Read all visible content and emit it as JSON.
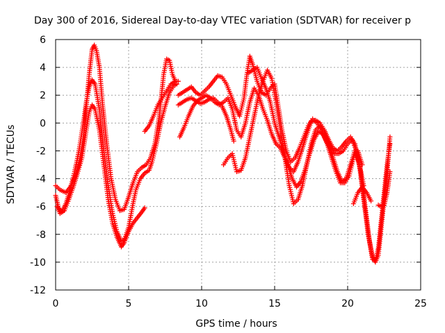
{
  "chart_data": {
    "type": "scatter",
    "title": "Day 300 of 2016, Sidereal Day-to-day VTEC variation (SDTVAR) for receiver p",
    "xlabel": "GPS time / hours",
    "ylabel": "SDTVAR / TECUs",
    "xlim": [
      0,
      25
    ],
    "ylim": [
      -12,
      6
    ],
    "x_ticks": [
      0,
      5,
      10,
      15,
      20,
      25
    ],
    "y_ticks": [
      -12,
      -10,
      -8,
      -6,
      -4,
      -2,
      0,
      2,
      4,
      6
    ],
    "grid": true,
    "marker": "+",
    "marker_color": "#ff0000",
    "series": [
      {
        "points": [
          [
            0.0,
            -4.5
          ],
          [
            0.3,
            -4.8
          ],
          [
            0.7,
            -5.0
          ],
          [
            1.0,
            -4.6
          ],
          [
            1.3,
            -3.9
          ],
          [
            1.6,
            -3.0
          ],
          [
            1.9,
            -1.0
          ],
          [
            2.1,
            1.2
          ],
          [
            2.3,
            3.5
          ],
          [
            2.5,
            5.3
          ],
          [
            2.65,
            5.6
          ],
          [
            2.8,
            5.2
          ],
          [
            3.0,
            4.0
          ],
          [
            3.2,
            1.5
          ],
          [
            3.5,
            -1.5
          ],
          [
            3.8,
            -4.0
          ],
          [
            4.1,
            -5.5
          ],
          [
            4.4,
            -6.3
          ],
          [
            4.7,
            -6.2
          ],
          [
            5.0,
            -5.3
          ],
          [
            5.3,
            -4.3
          ],
          [
            5.6,
            -3.5
          ],
          [
            5.9,
            -3.2
          ],
          [
            6.2,
            -3.0
          ],
          [
            6.5,
            -2.5
          ],
          [
            6.8,
            -1.5
          ],
          [
            7.1,
            0.5
          ],
          [
            7.4,
            3.5
          ],
          [
            7.6,
            4.6
          ],
          [
            7.8,
            4.5
          ],
          [
            8.0,
            3.5
          ],
          [
            8.2,
            3.0
          ],
          [
            8.4,
            3.0
          ]
        ]
      },
      {
        "points": [
          [
            0.0,
            -5.2
          ],
          [
            0.2,
            -6.1
          ],
          [
            0.4,
            -6.4
          ],
          [
            0.7,
            -5.8
          ],
          [
            1.0,
            -4.8
          ],
          [
            1.3,
            -3.5
          ],
          [
            1.6,
            -2.0
          ],
          [
            1.9,
            0.0
          ],
          [
            2.1,
            1.5
          ],
          [
            2.3,
            2.6
          ],
          [
            2.5,
            3.1
          ],
          [
            2.7,
            2.8
          ],
          [
            3.0,
            1.0
          ],
          [
            3.3,
            -2.0
          ],
          [
            3.6,
            -4.5
          ],
          [
            3.9,
            -6.5
          ],
          [
            4.2,
            -7.8
          ],
          [
            4.5,
            -8.5
          ],
          [
            4.7,
            -8.4
          ],
          [
            5.0,
            -7.5
          ],
          [
            5.3,
            -5.8
          ],
          [
            5.5,
            -4.8
          ],
          [
            5.8,
            -4.0
          ],
          [
            6.1,
            -3.6
          ],
          [
            6.4,
            -3.4
          ],
          [
            6.6,
            -2.8
          ],
          [
            6.9,
            -1.5
          ],
          [
            7.2,
            0.0
          ],
          [
            7.5,
            1.2
          ],
          [
            7.8,
            2.2
          ],
          [
            8.1,
            2.7
          ],
          [
            8.3,
            2.8
          ]
        ]
      },
      {
        "points": [
          [
            0.1,
            -6.0
          ],
          [
            0.3,
            -6.5
          ],
          [
            0.6,
            -6.3
          ],
          [
            0.9,
            -5.5
          ],
          [
            1.2,
            -4.6
          ],
          [
            1.5,
            -3.6
          ],
          [
            1.8,
            -2.5
          ],
          [
            2.1,
            -0.5
          ],
          [
            2.3,
            0.8
          ],
          [
            2.5,
            1.3
          ],
          [
            2.7,
            1.0
          ],
          [
            3.0,
            -0.5
          ],
          [
            3.3,
            -3.0
          ],
          [
            3.6,
            -5.5
          ],
          [
            3.9,
            -7.2
          ],
          [
            4.2,
            -8.2
          ],
          [
            4.5,
            -8.9
          ],
          [
            4.7,
            -8.6
          ],
          [
            5.0,
            -7.8
          ],
          [
            5.3,
            -7.2
          ],
          [
            5.6,
            -6.8
          ],
          [
            5.9,
            -6.4
          ],
          [
            6.1,
            -6.1
          ]
        ]
      },
      {
        "points": [
          [
            6.1,
            -0.6
          ],
          [
            6.4,
            -0.2
          ],
          [
            6.7,
            0.5
          ],
          [
            7.0,
            1.3
          ],
          [
            7.3,
            1.8
          ],
          [
            7.6,
            2.3
          ],
          [
            7.9,
            2.8
          ],
          [
            8.2,
            3.0
          ]
        ]
      },
      {
        "points": [
          [
            8.5,
            -1.0
          ],
          [
            8.8,
            -0.3
          ],
          [
            9.1,
            0.5
          ],
          [
            9.4,
            1.2
          ],
          [
            9.7,
            1.6
          ],
          [
            10.0,
            1.8
          ],
          [
            10.3,
            2.0
          ],
          [
            10.6,
            1.8
          ],
          [
            10.9,
            1.5
          ],
          [
            11.2,
            1.3
          ],
          [
            11.5,
            1.5
          ],
          [
            11.8,
            1.8
          ],
          [
            12.1,
            1.0
          ],
          [
            12.4,
            -0.5
          ],
          [
            12.7,
            -1.0
          ],
          [
            13.0,
            0.0
          ],
          [
            13.3,
            1.5
          ],
          [
            13.6,
            2.5
          ],
          [
            13.9,
            2.0
          ],
          [
            14.2,
            1.0
          ],
          [
            14.5,
            0.2
          ],
          [
            14.8,
            -0.8
          ],
          [
            15.1,
            -1.5
          ],
          [
            15.4,
            -1.8
          ],
          [
            15.7,
            -2.5
          ],
          [
            16.0,
            -3.2
          ],
          [
            16.3,
            -3.5
          ],
          [
            16.6,
            -2.8
          ],
          [
            16.9,
            -1.8
          ],
          [
            17.2,
            -0.8
          ],
          [
            17.5,
            0.1
          ],
          [
            17.8,
            0.2
          ],
          [
            18.1,
            0.0
          ],
          [
            18.4,
            -0.5
          ],
          [
            18.7,
            -1.2
          ],
          [
            19.0,
            -1.8
          ],
          [
            19.3,
            -2.0
          ],
          [
            19.6,
            -1.7
          ],
          [
            19.9,
            -1.3
          ],
          [
            20.2,
            -1.0
          ],
          [
            20.5,
            -1.5
          ],
          [
            20.8,
            -3.0
          ],
          [
            21.1,
            -5.5
          ],
          [
            21.4,
            -8.0
          ],
          [
            21.7,
            -9.6
          ],
          [
            21.9,
            -10.0
          ],
          [
            22.1,
            -9.5
          ],
          [
            22.3,
            -7.5
          ],
          [
            22.5,
            -5.5
          ],
          [
            22.7,
            -3.5
          ],
          [
            22.9,
            -1.0
          ]
        ]
      },
      {
        "points": [
          [
            8.4,
            2.0
          ],
          [
            8.7,
            2.2
          ],
          [
            9.0,
            2.4
          ],
          [
            9.3,
            2.6
          ],
          [
            9.6,
            2.2
          ],
          [
            9.9,
            2.0
          ],
          [
            10.2,
            2.3
          ],
          [
            10.5,
            2.6
          ],
          [
            10.8,
            3.0
          ],
          [
            11.1,
            3.4
          ],
          [
            11.4,
            3.3
          ],
          [
            11.7,
            2.8
          ],
          [
            12.0,
            2.0
          ],
          [
            12.3,
            1.2
          ],
          [
            12.6,
            0.5
          ],
          [
            12.9,
            1.8
          ],
          [
            13.1,
            3.5
          ],
          [
            13.3,
            4.8
          ],
          [
            13.5,
            4.2
          ],
          [
            13.8,
            3.0
          ],
          [
            14.1,
            2.2
          ],
          [
            14.4,
            2.0
          ],
          [
            14.7,
            2.5
          ],
          [
            15.0,
            2.8
          ],
          [
            15.2,
            1.5
          ],
          [
            15.5,
            -0.5
          ],
          [
            15.8,
            -2.0
          ],
          [
            16.1,
            -2.8
          ],
          [
            16.4,
            -2.5
          ],
          [
            16.7,
            -1.8
          ],
          [
            17.0,
            -1.0
          ],
          [
            17.3,
            -0.2
          ],
          [
            17.6,
            0.3
          ],
          [
            17.9,
            0.0
          ],
          [
            18.2,
            -0.5
          ],
          [
            18.5,
            -1.2
          ],
          [
            18.8,
            -1.8
          ],
          [
            19.1,
            -2.2
          ],
          [
            19.4,
            -2.2
          ],
          [
            19.7,
            -2.0
          ],
          [
            20.0,
            -1.5
          ],
          [
            20.3,
            -1.2
          ],
          [
            20.6,
            -2.0
          ],
          [
            20.9,
            -3.5
          ],
          [
            21.2,
            -6.0
          ],
          [
            21.5,
            -8.5
          ],
          [
            21.7,
            -9.8
          ],
          [
            21.9,
            -9.9
          ],
          [
            22.1,
            -9.0
          ],
          [
            22.3,
            -7.0
          ],
          [
            22.5,
            -5.0
          ],
          [
            22.7,
            -3.0
          ],
          [
            22.9,
            -1.5
          ]
        ]
      },
      {
        "points": [
          [
            8.4,
            1.3
          ],
          [
            8.7,
            1.5
          ],
          [
            9.0,
            1.7
          ],
          [
            9.3,
            1.8
          ],
          [
            9.6,
            1.6
          ],
          [
            9.9,
            1.4
          ],
          [
            10.2,
            1.5
          ],
          [
            10.5,
            1.7
          ],
          [
            10.8,
            1.8
          ],
          [
            11.1,
            1.5
          ],
          [
            11.4,
            1.2
          ],
          [
            11.7,
            0.5
          ],
          [
            12.0,
            -0.5
          ],
          [
            12.2,
            -1.3
          ]
        ]
      },
      {
        "points": [
          [
            11.5,
            -3.0
          ],
          [
            11.8,
            -2.5
          ],
          [
            12.1,
            -2.2
          ],
          [
            12.4,
            -3.5
          ],
          [
            12.7,
            -3.4
          ],
          [
            13.0,
            -2.5
          ],
          [
            13.3,
            -1.0
          ],
          [
            13.6,
            0.5
          ],
          [
            13.9,
            2.0
          ],
          [
            14.2,
            3.0
          ],
          [
            14.5,
            3.8
          ],
          [
            14.8,
            3.2
          ],
          [
            15.1,
            1.5
          ],
          [
            15.4,
            -0.5
          ],
          [
            15.7,
            -2.5
          ],
          [
            16.0,
            -4.5
          ],
          [
            16.3,
            -5.8
          ],
          [
            16.6,
            -5.5
          ],
          [
            16.9,
            -4.5
          ],
          [
            17.2,
            -3.0
          ],
          [
            17.5,
            -1.5
          ],
          [
            17.8,
            -0.5
          ],
          [
            18.1,
            -0.2
          ],
          [
            18.4,
            -0.6
          ],
          [
            18.7,
            -1.5
          ],
          [
            19.0,
            -2.5
          ],
          [
            19.3,
            -3.5
          ],
          [
            19.6,
            -4.2
          ],
          [
            19.9,
            -4.0
          ],
          [
            20.2,
            -3.0
          ],
          [
            20.5,
            -2.0
          ],
          [
            20.8,
            -3.0
          ],
          [
            21.1,
            -4.5
          ]
        ]
      },
      {
        "points": [
          [
            13.2,
            3.6
          ],
          [
            13.5,
            3.8
          ],
          [
            13.8,
            4.0
          ],
          [
            14.1,
            3.2
          ],
          [
            14.4,
            2.5
          ],
          [
            14.7,
            1.5
          ],
          [
            15.0,
            0.0
          ],
          [
            15.3,
            -1.0
          ],
          [
            15.6,
            -2.0
          ],
          [
            15.9,
            -3.0
          ],
          [
            16.2,
            -4.0
          ],
          [
            16.5,
            -4.6
          ],
          [
            16.8,
            -4.2
          ],
          [
            17.1,
            -3.3
          ],
          [
            17.4,
            -2.2
          ],
          [
            17.7,
            -1.2
          ],
          [
            18.0,
            -0.6
          ],
          [
            18.3,
            -0.8
          ],
          [
            18.6,
            -1.5
          ],
          [
            18.9,
            -2.5
          ],
          [
            19.2,
            -3.5
          ],
          [
            19.5,
            -4.3
          ],
          [
            19.8,
            -4.3
          ],
          [
            20.1,
            -3.8
          ],
          [
            20.4,
            -2.5
          ],
          [
            20.7,
            -2.0
          ],
          [
            21.0,
            -3.0
          ]
        ]
      },
      {
        "points": [
          [
            20.4,
            -5.8
          ],
          [
            20.7,
            -5.0
          ],
          [
            21.0,
            -4.6
          ],
          [
            21.3,
            -5.0
          ],
          [
            21.6,
            -5.6
          ]
        ]
      },
      {
        "points": [
          [
            22.1,
            -5.9
          ],
          [
            22.3,
            -6.0
          ],
          [
            22.5,
            -5.9
          ],
          [
            22.7,
            -5.0
          ],
          [
            22.9,
            -3.5
          ]
        ]
      }
    ]
  }
}
